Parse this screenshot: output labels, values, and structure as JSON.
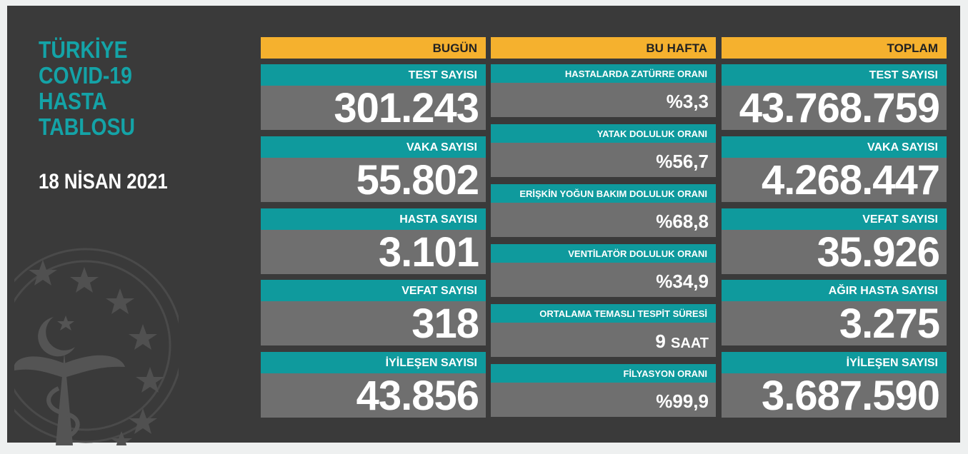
{
  "title_lines": [
    "TÜRKİYE",
    "COVID-19",
    "HASTA",
    "TABLOSU"
  ],
  "date": "18 NİSAN 2021",
  "columns": {
    "bugun": {
      "header": "BUGÜN",
      "cards": [
        {
          "label": "TEST SAYISI",
          "value": "301.243"
        },
        {
          "label": "VAKA SAYISI",
          "value": "55.802"
        },
        {
          "label": "HASTA SAYISI",
          "value": "3.101"
        },
        {
          "label": "VEFAT SAYISI",
          "value": "318"
        },
        {
          "label": "İYİLEŞEN SAYISI",
          "value": "43.856"
        }
      ]
    },
    "bu_hafta": {
      "header": "BU HAFTA",
      "cards": [
        {
          "label": "HASTALARDA ZATÜRRE ORANI",
          "value": "%3,3"
        },
        {
          "label": "YATAK DOLULUK ORANI",
          "value": "%56,7"
        },
        {
          "label": "ERİŞKİN YOĞUN BAKIM DOLULUK ORANI",
          "value": "%68,8"
        },
        {
          "label": "VENTİLATÖR DOLULUK ORANI",
          "value": "%34,9"
        },
        {
          "label": "ORTALAMA TEMASLI TESPİT SÜRESİ",
          "value": "9",
          "unit": "SAAT"
        },
        {
          "label": "FİLYASYON ORANI",
          "value": "%99,9"
        }
      ]
    },
    "toplam": {
      "header": "TOPLAM",
      "cards": [
        {
          "label": "TEST SAYISI",
          "value": "43.768.759"
        },
        {
          "label": "VAKA SAYISI",
          "value": "4.268.447"
        },
        {
          "label": "VEFAT SAYISI",
          "value": "35.926"
        },
        {
          "label": "AĞIR HASTA SAYISI",
          "value": "3.275"
        },
        {
          "label": "İYİLEŞEN SAYISI",
          "value": "3.687.590"
        }
      ]
    }
  },
  "colors": {
    "background": "#3a3a3a",
    "header": "#f5b12e",
    "label": "#0f9a9d",
    "value_box": "#6f6f6f",
    "title": "#14a3a7"
  },
  "icons": {
    "emblem": "ministry-of-health-emblem-icon"
  }
}
